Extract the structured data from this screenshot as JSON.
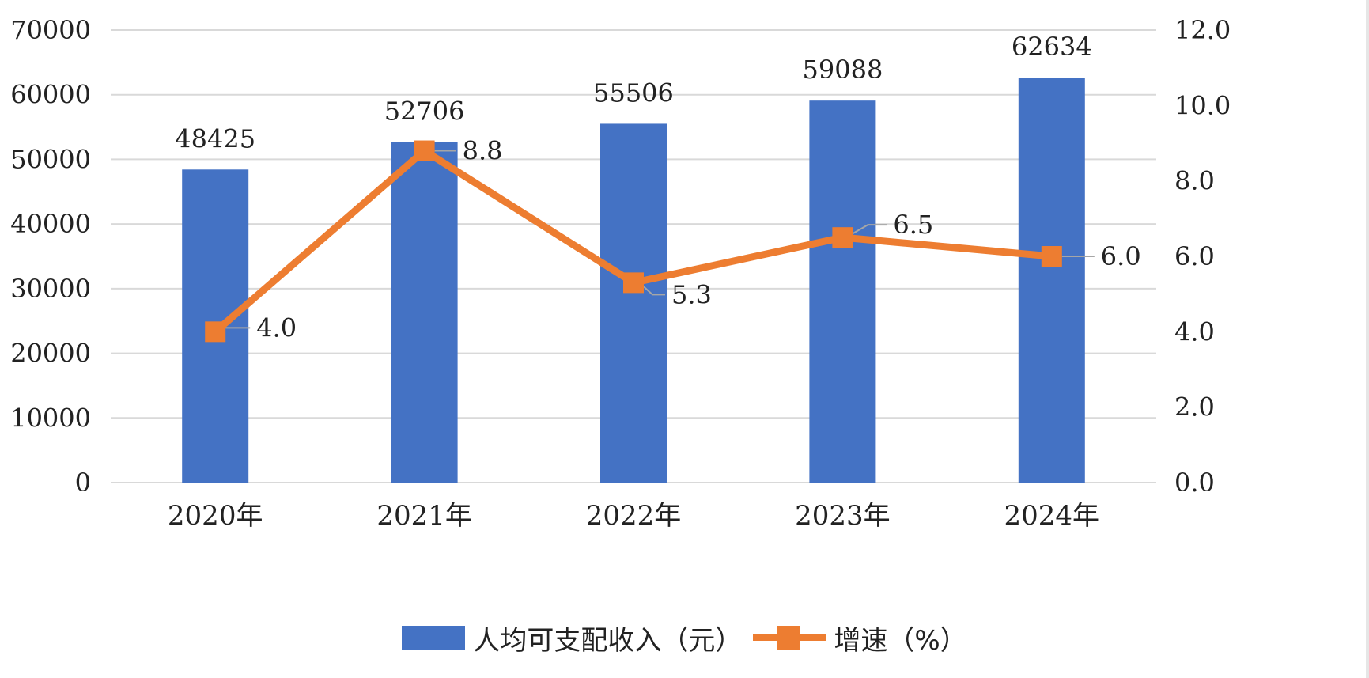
{
  "chart_data": {
    "type": "bar",
    "categories": [
      "2020年",
      "2021年",
      "2022年",
      "2023年",
      "2024年"
    ],
    "series": [
      {
        "name": "人均可支配收入（元）",
        "type": "bar",
        "axis": "left",
        "values": [
          48425,
          52706,
          55506,
          59088,
          62634
        ],
        "color": "#4472c4"
      },
      {
        "name": "增速（%）",
        "type": "line",
        "axis": "right",
        "values": [
          4.0,
          8.8,
          5.3,
          6.5,
          6.0
        ],
        "color": "#ed7d31"
      }
    ],
    "bar_labels": [
      "48425",
      "52706",
      "55506",
      "59088",
      "62634"
    ],
    "line_labels": [
      "4.0",
      "8.8",
      "5.3",
      "6.5",
      "6.0"
    ],
    "y_left": {
      "ylim": [
        0,
        70000
      ],
      "ticks": [
        "0",
        "10000",
        "20000",
        "30000",
        "40000",
        "50000",
        "60000",
        "70000"
      ]
    },
    "y_right": {
      "ylim": [
        0,
        12
      ],
      "ticks": [
        "0.0",
        "2.0",
        "4.0",
        "6.0",
        "8.0",
        "10.0",
        "12.0"
      ]
    },
    "grid": true,
    "legend_position": "bottom",
    "title": "",
    "xlabel": "",
    "ylabel": ""
  }
}
